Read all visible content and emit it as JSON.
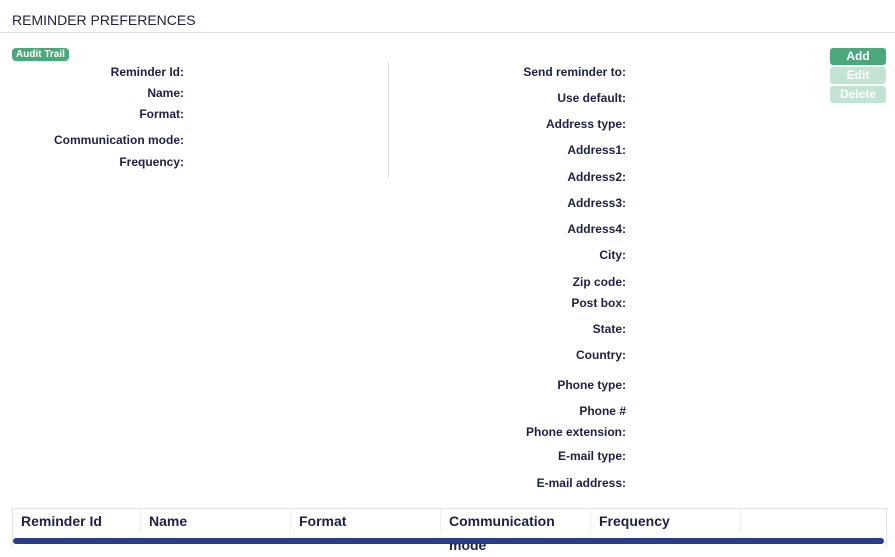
{
  "title": "REMINDER PREFERENCES",
  "audit_trail": "Audit Trail",
  "left_fields": [
    "Reminder Id:",
    "Name:",
    "Format:",
    "Communication mode:",
    "Frequency:"
  ],
  "right_fields": [
    "Send reminder to:",
    "Use default:",
    "Address type:",
    "Address1:",
    "Address2:",
    "Address3:",
    "Address4:",
    "City:",
    "Zip code:",
    "Post box:",
    "State:",
    "Country:",
    "Phone type:",
    "Phone #",
    "Phone extension:",
    "E-mail type:",
    "E-mail address:"
  ],
  "buttons": {
    "add": "Add",
    "edit": "Edit",
    "delete": "Delete"
  },
  "table": {
    "columns": [
      "Reminder Id",
      "Name",
      "Format",
      "Communication mode",
      "Frequency"
    ]
  },
  "colors": {
    "accent": "#4aa87a",
    "text": "#1c2145",
    "scrollbar": "#283c88"
  }
}
